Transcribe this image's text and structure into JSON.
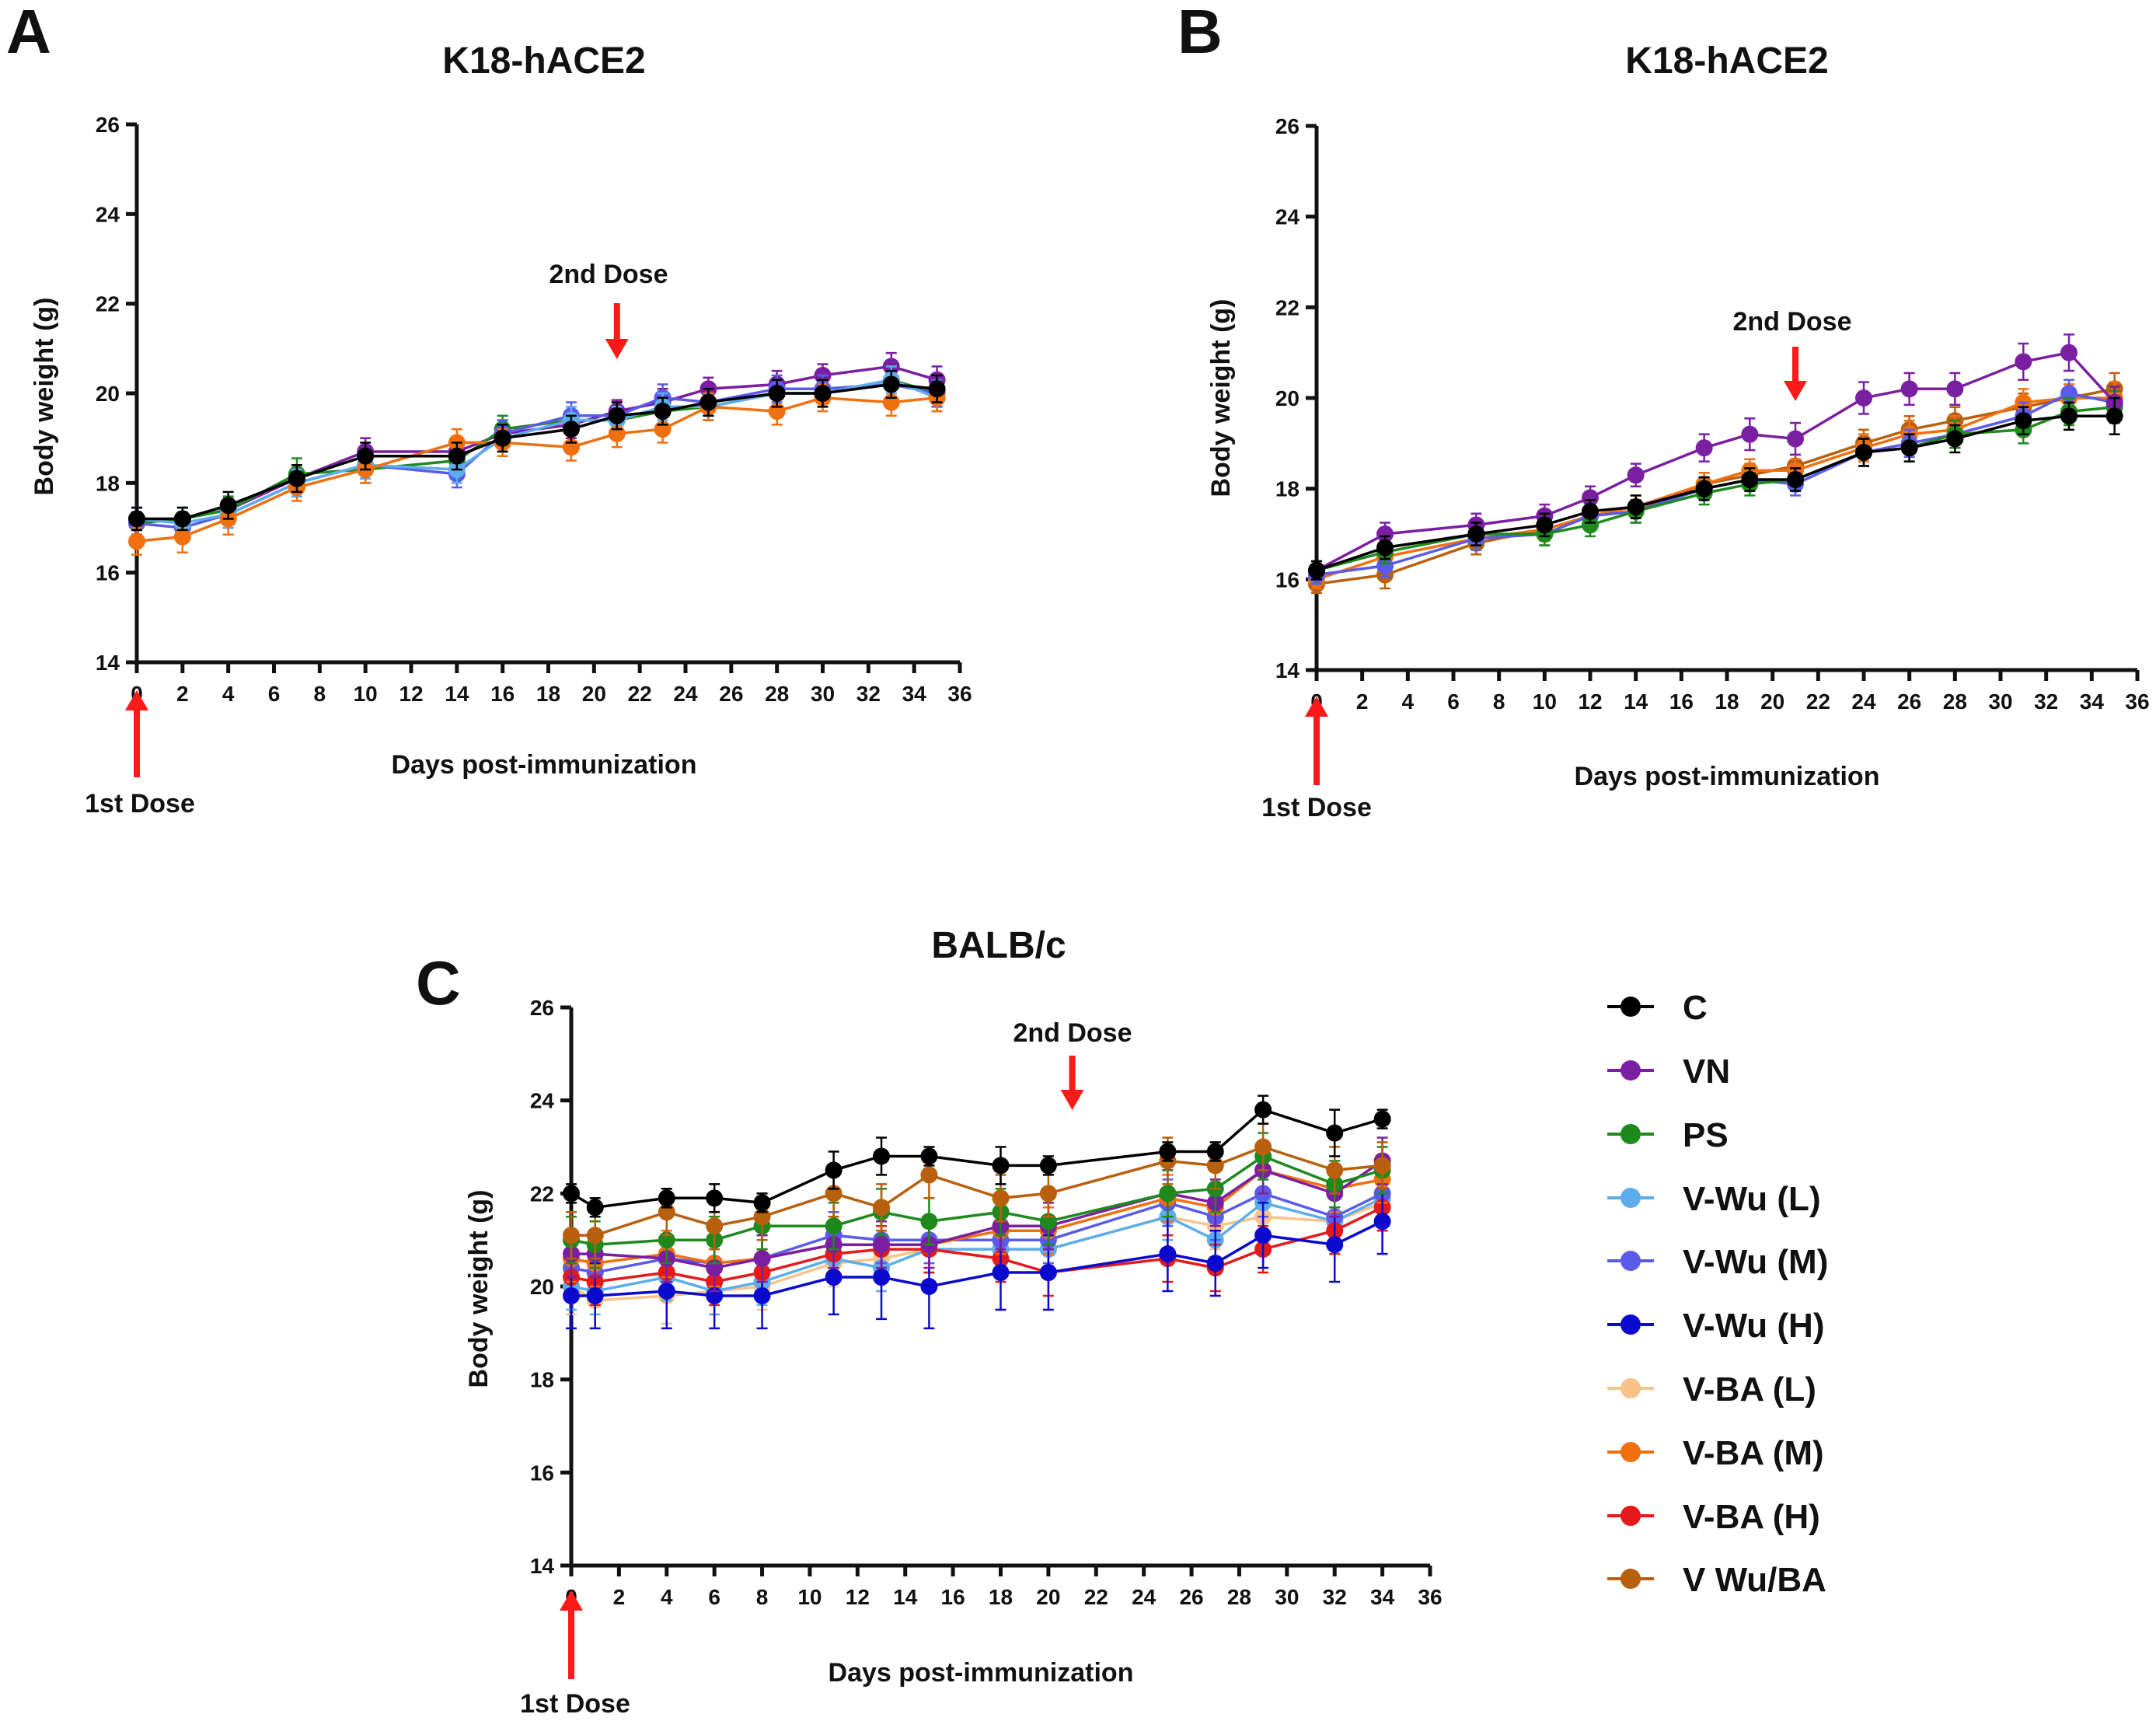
{
  "series_styles": [
    {
      "key": "C",
      "name": "C",
      "color": "#000000"
    },
    {
      "key": "VN",
      "name": "VN",
      "color": "#7B1FA2"
    },
    {
      "key": "PS",
      "name": "PS",
      "color": "#1E8A1E"
    },
    {
      "key": "VWL",
      "name": "V-Wu (L)",
      "color": "#5DADEC"
    },
    {
      "key": "VWM",
      "name": "V-Wu (M)",
      "color": "#5B5BEB"
    },
    {
      "key": "VWH",
      "name": "V-Wu (H)",
      "color": "#0A0ACF"
    },
    {
      "key": "VBL",
      "name": "V-BA (L)",
      "color": "#F8C48A"
    },
    {
      "key": "VBM",
      "name": "V-BA (M)",
      "color": "#F07010"
    },
    {
      "key": "VBH",
      "name": "V-BA (H)",
      "color": "#E41A1A"
    },
    {
      "key": "VWB",
      "name": "V Wu/BA",
      "color": "#B8600E"
    }
  ],
  "arrow_color": "#FF1A1A",
  "chart_data": [
    {
      "id": "A",
      "panel_letter": "A",
      "type": "line",
      "title": "K18-hACE2",
      "xlabel": "Days post-immunization",
      "ylabel": "Body weight (g)",
      "xlim": [
        0,
        36
      ],
      "ylim": [
        14,
        26
      ],
      "xticks": [
        0,
        2,
        4,
        6,
        8,
        10,
        12,
        14,
        16,
        18,
        20,
        22,
        24,
        26,
        28,
        30,
        32,
        34,
        36
      ],
      "yticks": [
        14,
        16,
        18,
        20,
        22,
        24,
        26
      ],
      "annotations": {
        "first_dose": {
          "label": "1st Dose",
          "x": 0
        },
        "second_dose": {
          "label": "2nd Dose",
          "x": 21
        }
      },
      "x": [
        0,
        2,
        4,
        7,
        10,
        14,
        16,
        19,
        21,
        23,
        25,
        28,
        30,
        33,
        35
      ],
      "series": [
        {
          "key": "VN",
          "values": [
            17.2,
            17.2,
            17.4,
            18.1,
            18.7,
            18.7,
            19.1,
            19.3,
            19.6,
            19.8,
            20.1,
            20.2,
            20.4,
            20.6,
            20.3
          ],
          "err": [
            0.25,
            0.25,
            0.25,
            0.3,
            0.3,
            0.3,
            0.3,
            0.3,
            0.25,
            0.3,
            0.25,
            0.3,
            0.25,
            0.3,
            0.3
          ]
        },
        {
          "key": "PS",
          "values": [
            17.1,
            17.2,
            17.4,
            18.2,
            18.3,
            18.5,
            19.2,
            19.4,
            19.4,
            19.6,
            19.7,
            20.0,
            20.0,
            20.3,
            20.0
          ],
          "err": [
            0.25,
            0.25,
            0.3,
            0.35,
            0.3,
            0.3,
            0.3,
            0.3,
            0.3,
            0.3,
            0.3,
            0.3,
            0.3,
            0.3,
            0.3
          ]
        },
        {
          "key": "VWM",
          "values": [
            17.1,
            17.0,
            17.3,
            18.0,
            18.4,
            18.2,
            19.1,
            19.5,
            19.5,
            19.9,
            19.8,
            20.1,
            20.1,
            20.2,
            20.0
          ],
          "err": [
            0.25,
            0.25,
            0.3,
            0.3,
            0.3,
            0.3,
            0.3,
            0.3,
            0.3,
            0.3,
            0.3,
            0.3,
            0.3,
            0.3,
            0.3
          ]
        },
        {
          "key": "VWL",
          "values": [
            17.2,
            17.1,
            17.3,
            18.0,
            18.4,
            18.3,
            19.0,
            19.4,
            19.4,
            19.7,
            19.7,
            20.0,
            20.0,
            20.3,
            19.9
          ],
          "err": [
            0.25,
            0.25,
            0.3,
            0.3,
            0.3,
            0.3,
            0.3,
            0.3,
            0.3,
            0.3,
            0.3,
            0.3,
            0.3,
            0.3,
            0.3
          ]
        },
        {
          "key": "VBM",
          "values": [
            16.7,
            16.8,
            17.2,
            17.9,
            18.3,
            18.9,
            18.9,
            18.8,
            19.1,
            19.2,
            19.7,
            19.6,
            19.9,
            19.8,
            19.9
          ],
          "err": [
            0.3,
            0.35,
            0.35,
            0.3,
            0.3,
            0.3,
            0.3,
            0.3,
            0.3,
            0.3,
            0.3,
            0.3,
            0.3,
            0.3,
            0.3
          ]
        },
        {
          "key": "C",
          "values": [
            17.2,
            17.2,
            17.5,
            18.1,
            18.6,
            18.6,
            19.0,
            19.2,
            19.5,
            19.6,
            19.8,
            20.0,
            20.0,
            20.2,
            20.1
          ],
          "err": [
            0.25,
            0.25,
            0.3,
            0.3,
            0.3,
            0.3,
            0.3,
            0.3,
            0.3,
            0.3,
            0.3,
            0.3,
            0.3,
            0.3,
            0.3
          ]
        }
      ]
    },
    {
      "id": "B",
      "panel_letter": "B",
      "type": "line",
      "title": "K18-hACE2",
      "xlabel": "Days post-immunization",
      "ylabel": "Body weight (g)",
      "xlim": [
        0,
        36
      ],
      "ylim": [
        14,
        26
      ],
      "xticks": [
        0,
        2,
        4,
        6,
        8,
        10,
        12,
        14,
        16,
        18,
        20,
        22,
        24,
        26,
        28,
        30,
        32,
        34,
        36
      ],
      "yticks": [
        14,
        16,
        18,
        20,
        22,
        24,
        26
      ],
      "annotations": {
        "first_dose": {
          "label": "1st Dose",
          "x": 0
        },
        "second_dose": {
          "label": "2nd Dose",
          "x": 21
        }
      },
      "x": [
        0,
        3,
        7,
        10,
        12,
        14,
        17,
        19,
        21,
        24,
        26,
        28,
        31,
        33,
        35
      ],
      "series": [
        {
          "key": "VWB",
          "values": [
            15.9,
            16.1,
            16.8,
            17.1,
            17.4,
            17.5,
            18.1,
            18.3,
            18.5,
            19.0,
            19.3,
            19.5,
            19.8,
            20.0,
            20.2
          ],
          "err": [
            0.2,
            0.3,
            0.25,
            0.25,
            0.25,
            0.25,
            0.25,
            0.25,
            0.25,
            0.3,
            0.3,
            0.3,
            0.3,
            0.3,
            0.35
          ]
        },
        {
          "key": "VBM",
          "values": [
            16.0,
            16.5,
            16.9,
            17.1,
            17.4,
            17.6,
            18.1,
            18.4,
            18.4,
            18.9,
            19.2,
            19.3,
            19.9,
            20.0,
            20.0
          ],
          "err": [
            0.2,
            0.25,
            0.25,
            0.25,
            0.25,
            0.25,
            0.25,
            0.25,
            0.25,
            0.3,
            0.3,
            0.3,
            0.3,
            0.3,
            0.35
          ]
        },
        {
          "key": "VWM",
          "values": [
            16.1,
            16.3,
            16.9,
            17.0,
            17.4,
            17.5,
            18.0,
            18.2,
            18.1,
            18.8,
            19.0,
            19.2,
            19.6,
            20.1,
            19.9
          ],
          "err": [
            0.2,
            0.25,
            0.25,
            0.25,
            0.25,
            0.25,
            0.25,
            0.25,
            0.25,
            0.3,
            0.3,
            0.3,
            0.3,
            0.3,
            0.35
          ]
        },
        {
          "key": "PS",
          "values": [
            16.2,
            16.6,
            17.0,
            17.0,
            17.2,
            17.5,
            17.9,
            18.1,
            18.2,
            18.8,
            18.9,
            19.2,
            19.3,
            19.7,
            19.8
          ],
          "err": [
            0.2,
            0.25,
            0.25,
            0.25,
            0.25,
            0.25,
            0.25,
            0.25,
            0.25,
            0.3,
            0.3,
            0.3,
            0.3,
            0.3,
            0.35
          ]
        },
        {
          "key": "VN",
          "values": [
            16.2,
            17.0,
            17.2,
            17.4,
            17.8,
            18.3,
            18.9,
            19.2,
            19.1,
            20.0,
            20.2,
            20.2,
            20.8,
            21.0,
            19.9
          ],
          "err": [
            0.2,
            0.25,
            0.25,
            0.25,
            0.25,
            0.25,
            0.3,
            0.35,
            0.35,
            0.35,
            0.35,
            0.35,
            0.4,
            0.4,
            0.35
          ]
        },
        {
          "key": "C",
          "values": [
            16.2,
            16.7,
            17.0,
            17.2,
            17.5,
            17.6,
            18.0,
            18.2,
            18.2,
            18.8,
            18.9,
            19.1,
            19.5,
            19.6,
            19.6
          ],
          "err": [
            0.2,
            0.25,
            0.25,
            0.25,
            0.25,
            0.25,
            0.25,
            0.25,
            0.25,
            0.3,
            0.3,
            0.3,
            0.3,
            0.3,
            0.4
          ]
        }
      ]
    },
    {
      "id": "C",
      "panel_letter": "C",
      "type": "line",
      "title": "BALB/c",
      "xlabel": "Days post-immunization",
      "ylabel": "Body weight (g)",
      "xlim": [
        0,
        36
      ],
      "ylim": [
        14,
        26
      ],
      "xticks": [
        0,
        2,
        4,
        6,
        8,
        10,
        12,
        14,
        16,
        18,
        20,
        22,
        24,
        26,
        28,
        30,
        32,
        34,
        36
      ],
      "yticks": [
        14,
        16,
        18,
        20,
        22,
        24,
        26
      ],
      "annotations": {
        "first_dose": {
          "label": "1st Dose",
          "x": 0
        },
        "second_dose": {
          "label": "2nd Dose",
          "x": 21
        }
      },
      "x": [
        0,
        1,
        4,
        6,
        8,
        11,
        13,
        15,
        18,
        20,
        25,
        27,
        29,
        32,
        34
      ],
      "series": [
        {
          "key": "VBL",
          "values": [
            20.0,
            19.7,
            19.8,
            19.9,
            20.0,
            20.5,
            20.6,
            20.8,
            20.8,
            20.8,
            21.5,
            21.3,
            21.5,
            21.4,
            21.8
          ],
          "err": [
            0.6,
            0.6,
            0.6,
            0.5,
            0.5,
            0.5,
            0.5,
            0.5,
            0.5,
            0.5,
            0.5,
            0.5,
            0.5,
            0.5,
            0.5
          ]
        },
        {
          "key": "VWL",
          "values": [
            20.0,
            19.9,
            20.2,
            19.9,
            20.1,
            20.6,
            20.4,
            20.8,
            20.8,
            20.8,
            21.5,
            21.0,
            21.8,
            21.4,
            21.9
          ],
          "err": [
            0.5,
            0.5,
            0.5,
            0.5,
            0.5,
            0.5,
            0.5,
            0.5,
            0.5,
            0.5,
            0.5,
            0.5,
            0.5,
            0.5,
            0.5
          ]
        },
        {
          "key": "VWM",
          "values": [
            20.4,
            20.3,
            20.6,
            20.5,
            20.6,
            21.1,
            21.0,
            21.0,
            21.0,
            21.0,
            21.8,
            21.5,
            22.0,
            21.5,
            22.0
          ],
          "err": [
            0.5,
            0.5,
            0.5,
            0.5,
            0.5,
            0.5,
            0.5,
            0.5,
            0.5,
            0.5,
            0.5,
            0.5,
            0.5,
            0.5,
            0.5
          ]
        },
        {
          "key": "VBH",
          "values": [
            20.2,
            20.1,
            20.3,
            20.1,
            20.3,
            20.7,
            20.8,
            20.8,
            20.6,
            20.3,
            20.6,
            20.4,
            20.8,
            21.2,
            21.7
          ],
          "err": [
            0.5,
            0.5,
            0.5,
            0.5,
            0.5,
            0.5,
            0.5,
            0.5,
            0.5,
            0.5,
            0.5,
            0.5,
            0.5,
            0.5,
            0.5
          ]
        },
        {
          "key": "VBM",
          "values": [
            20.6,
            20.5,
            20.7,
            20.5,
            20.6,
            20.9,
            20.9,
            20.9,
            21.2,
            21.2,
            21.9,
            21.7,
            22.5,
            22.1,
            22.3
          ],
          "err": [
            0.5,
            0.5,
            0.5,
            0.5,
            0.5,
            0.5,
            0.5,
            0.5,
            0.5,
            0.5,
            0.5,
            0.5,
            0.5,
            0.5,
            0.5
          ]
        },
        {
          "key": "VWH",
          "values": [
            19.8,
            19.8,
            19.9,
            19.8,
            19.8,
            20.2,
            20.2,
            20.0,
            20.3,
            20.3,
            20.7,
            20.5,
            21.1,
            20.9,
            21.4
          ],
          "err": [
            0.7,
            0.7,
            0.8,
            0.7,
            0.7,
            0.8,
            0.9,
            0.9,
            0.8,
            0.8,
            0.8,
            0.7,
            0.7,
            0.8,
            0.7
          ]
        },
        {
          "key": "VN",
          "values": [
            20.7,
            20.7,
            20.6,
            20.4,
            20.6,
            20.9,
            20.9,
            20.9,
            21.3,
            21.3,
            22.0,
            21.8,
            22.5,
            22.0,
            22.7
          ],
          "err": [
            0.5,
            0.5,
            0.5,
            0.5,
            0.5,
            0.5,
            0.5,
            0.5,
            0.5,
            0.5,
            0.5,
            0.5,
            0.5,
            0.5,
            0.5
          ]
        },
        {
          "key": "PS",
          "values": [
            21.0,
            20.9,
            21.0,
            21.0,
            21.3,
            21.3,
            21.6,
            21.4,
            21.6,
            21.4,
            22.0,
            22.1,
            22.8,
            22.2,
            22.5
          ],
          "err": [
            0.5,
            0.5,
            0.5,
            0.5,
            0.5,
            0.5,
            0.5,
            0.5,
            0.5,
            0.5,
            0.5,
            0.5,
            0.5,
            0.5,
            0.5
          ]
        },
        {
          "key": "VWB",
          "values": [
            21.1,
            21.1,
            21.6,
            21.3,
            21.5,
            22.0,
            21.7,
            22.4,
            21.9,
            22.0,
            22.7,
            22.6,
            23.0,
            22.5,
            22.6
          ],
          "err": [
            0.5,
            0.5,
            0.5,
            0.5,
            0.5,
            0.5,
            0.5,
            0.5,
            0.5,
            0.5,
            0.5,
            0.5,
            0.5,
            0.5,
            0.5
          ]
        },
        {
          "key": "C",
          "values": [
            22.0,
            21.7,
            21.9,
            21.9,
            21.8,
            22.5,
            22.8,
            22.8,
            22.6,
            22.6,
            22.9,
            22.9,
            23.8,
            23.3,
            23.6
          ],
          "err": [
            0.2,
            0.2,
            0.2,
            0.3,
            0.2,
            0.4,
            0.4,
            0.2,
            0.4,
            0.2,
            0.2,
            0.2,
            0.3,
            0.5,
            0.2
          ]
        }
      ]
    }
  ]
}
